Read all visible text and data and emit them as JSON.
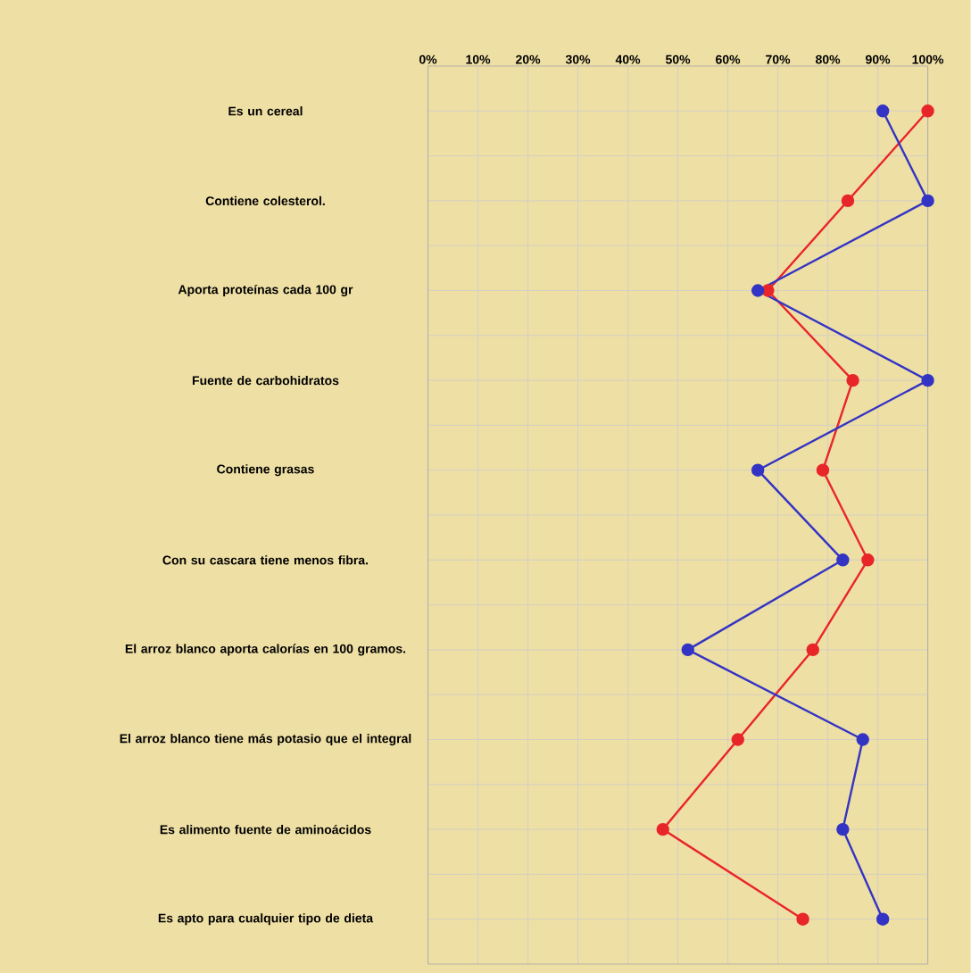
{
  "chart_data": {
    "type": "line",
    "orientation": "horizontal",
    "categories": [
      "Es un cereal",
      "Contiene colesterol.",
      "Aporta proteínas cada 100 gr",
      "Fuente de carbohidratos",
      "Contiene grasas",
      "Con su cascara tiene menos fibra.",
      "El arroz blanco aporta calorías en 100 gramos.",
      "El arroz blanco tiene más potasio que el integral",
      "Es alimento fuente de aminoácidos",
      "Es apto para cualquier tipo de dieta"
    ],
    "series": [
      {
        "color": "#e8262a",
        "values": [
          100,
          84,
          68,
          85,
          79,
          88,
          77,
          62,
          47,
          75
        ]
      },
      {
        "color": "#3434c4",
        "values": [
          91,
          100,
          66,
          100,
          66,
          83,
          52,
          87,
          83,
          91
        ]
      }
    ],
    "xlim": [
      0,
      100
    ],
    "xticks": [
      {
        "value": 0,
        "label": "0%"
      },
      {
        "value": 10,
        "label": "10%"
      },
      {
        "value": 20,
        "label": "20%"
      },
      {
        "value": 30,
        "label": "30%"
      },
      {
        "value": 40,
        "label": "40%"
      },
      {
        "value": 50,
        "label": "50%"
      },
      {
        "value": 60,
        "label": "60%"
      },
      {
        "value": 70,
        "label": "70%"
      },
      {
        "value": 80,
        "label": "80%"
      },
      {
        "value": 90,
        "label": "90%"
      },
      {
        "value": 100,
        "label": "100%"
      }
    ],
    "grid": true,
    "marker": "circle",
    "line_style": "solid"
  }
}
